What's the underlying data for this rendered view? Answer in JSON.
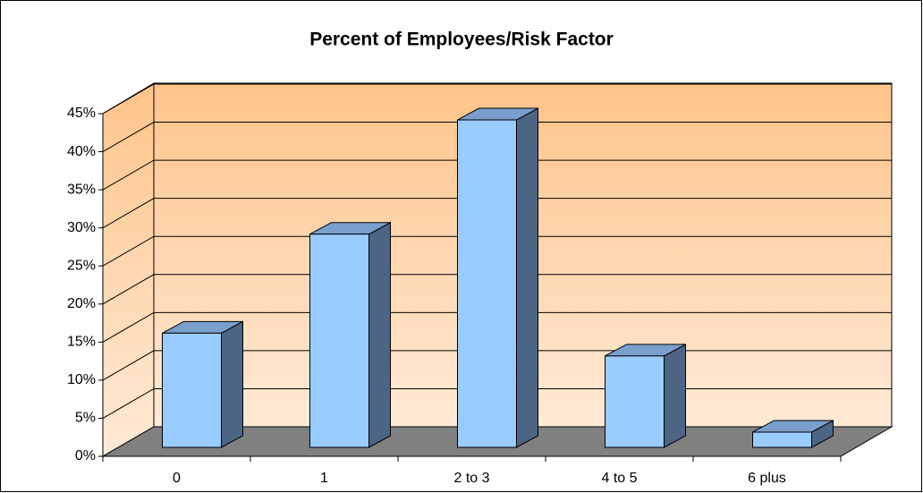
{
  "chart_data": {
    "type": "bar3d",
    "title": "Percent of Employees/Risk Factor",
    "categories": [
      "0",
      "1",
      "2 to 3",
      "4 to 5",
      "6 plus"
    ],
    "values": [
      15,
      28,
      43,
      12,
      2
    ],
    "color": "#99ccff",
    "ylim": [
      0,
      45
    ],
    "yticks": [
      {
        "value": 0,
        "label": "0%"
      },
      {
        "value": 5,
        "label": "5%"
      },
      {
        "value": 10,
        "label": "10%"
      },
      {
        "value": 15,
        "label": "15%"
      },
      {
        "value": 20,
        "label": "20%"
      },
      {
        "value": 25,
        "label": "25%"
      },
      {
        "value": 30,
        "label": "30%"
      },
      {
        "value": 35,
        "label": "35%"
      },
      {
        "value": 40,
        "label": "40%"
      },
      {
        "value": 45,
        "label": "45%"
      }
    ],
    "grid": true
  }
}
